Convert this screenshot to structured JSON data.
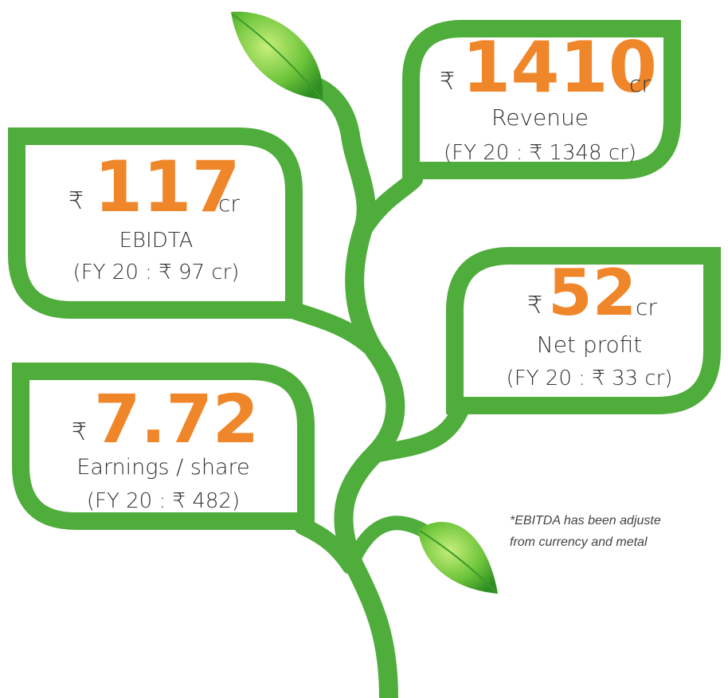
{
  "cards": [
    {
      "currency": "₹",
      "value": "1410",
      "unit": "cr",
      "label": "Revenue",
      "comparison": "(FY 20 : ₹ 1348 cr)"
    },
    {
      "currency": "₹",
      "value": "117",
      "unit": "cr",
      "label": "EBIDTA",
      "comparison": "(FY 20 : ₹ 97 cr)"
    },
    {
      "currency": "₹",
      "value": "52",
      "unit": "cr",
      "label": "Net profit",
      "comparison": "(FY 20 : ₹ 33 cr)"
    },
    {
      "currency": "₹",
      "value": "7.72",
      "label": "Earnings / share",
      "comparison": "(FY 20 : ₹ 482)"
    }
  ],
  "footnote": {
    "lines": [
      "*EBITDA has been adjuste",
      "from currency and metal"
    ]
  }
}
